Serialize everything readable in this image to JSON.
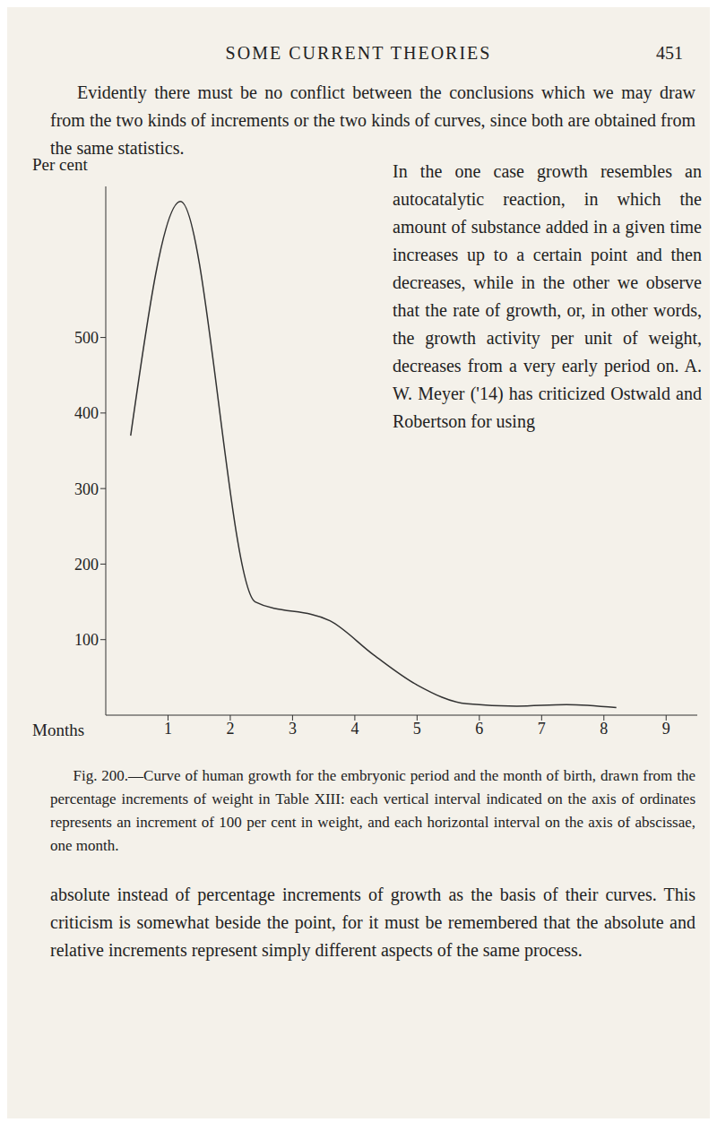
{
  "header": {
    "title": "SOME CURRENT THEORIES",
    "page": "451"
  },
  "paragraph_parts": [
    "Evidently there must be no conflict between the conclusions which we may draw from the two kinds of increments or the two kinds of curves, since both are obtained from the same statistics.",
    "In the one case growth resembles an autocatalytic reaction, in which the amount of substance added in a given time increases up to a certain point and then decreases, while in the other we observe that the rate of growth, or, in other words, the growth activity per unit of weight, decreases from a very early period on. A. W. Meyer ('14) has criticized Ostwald and Robertson for using",
    "absolute instead of percentage increments of growth as the basis of their curves. This criticism is somewhat beside the point, for it must be remembered that the absolute and relative increments represent simply different aspects of the same process."
  ],
  "caption": "Fig. 200.—Curve of human growth for the embryonic period and the month of birth, drawn from the percentage increments of weight in Table XIII: each vertical interval indicated on the axis of ordinates represents an increment of 100 per cent in weight, and each horizontal interval on the axis of abscissae, one month.",
  "chart_data": {
    "type": "line",
    "x_label": "Months",
    "y_label": "Per cent",
    "x": [
      0.4,
      1.2,
      2.4,
      3.6,
      4.3,
      5,
      5.8,
      6.6,
      7.4,
      8.2
    ],
    "values": [
      370,
      680,
      150,
      125,
      80,
      40,
      15,
      12,
      14,
      10
    ],
    "color": "#333333",
    "xlim": [
      0,
      9.5
    ],
    "xticks": [
      1,
      2,
      3,
      4,
      5,
      6,
      7,
      8,
      9
    ],
    "ylim": [
      0,
      700
    ],
    "yticks": [
      100,
      200,
      300,
      400,
      500
    ],
    "grid": false
  }
}
